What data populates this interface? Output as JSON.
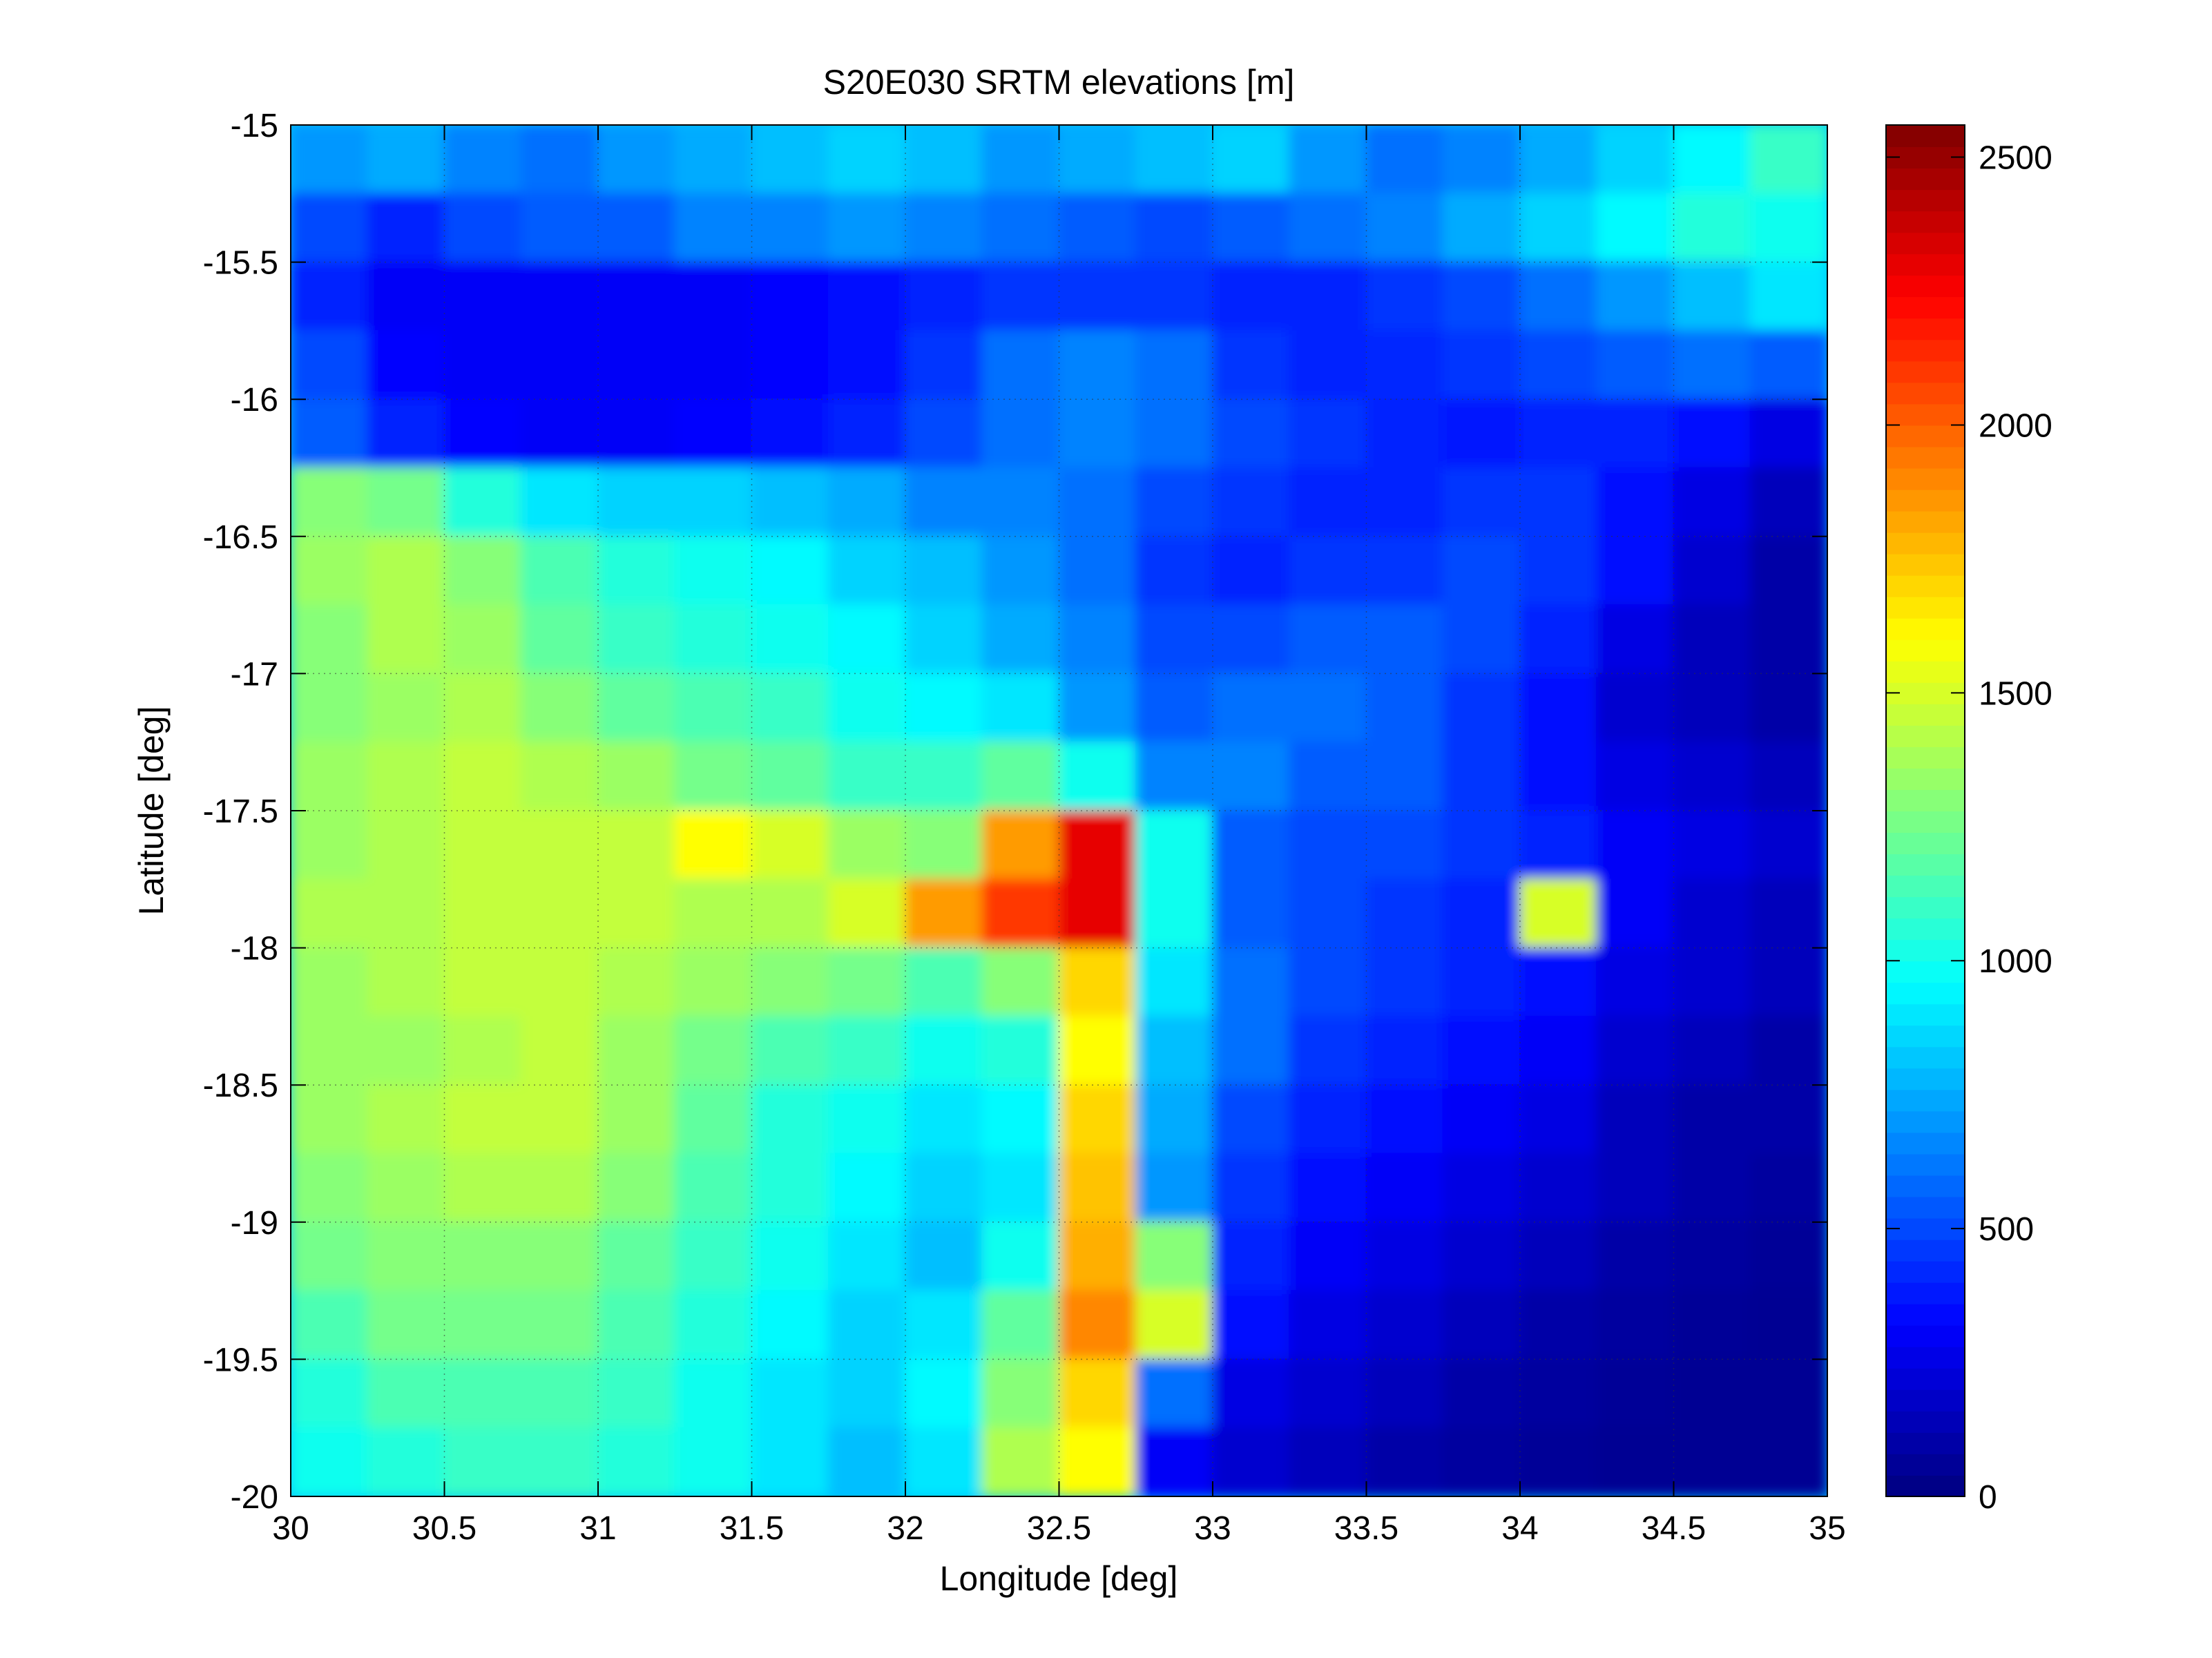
{
  "chart_data": {
    "type": "heatmap",
    "title": "S20E030 SRTM elevations [m]",
    "xlabel": "Longitude [deg]",
    "ylabel": "Latitude [deg]",
    "xlim": [
      30,
      35
    ],
    "ylim": [
      -20,
      -15
    ],
    "x_ticks": [
      30,
      30.5,
      31,
      31.5,
      32,
      32.5,
      33,
      33.5,
      34,
      34.5,
      35
    ],
    "x_tick_labels": [
      "30",
      "30.5",
      "31",
      "31.5",
      "32",
      "32.5",
      "33",
      "33.5",
      "34",
      "34.5",
      "35"
    ],
    "y_ticks": [
      -15,
      -15.5,
      -16,
      -16.5,
      -17,
      -17.5,
      -18,
      -18.5,
      -19,
      -19.5,
      -20
    ],
    "y_tick_labels": [
      "-15",
      "-15.5",
      "-16",
      "-16.5",
      "-17",
      "-17.5",
      "-18",
      "-18.5",
      "-19",
      "-19.5",
      "-20"
    ],
    "grid": true,
    "colormap": "jet",
    "colorbar": {
      "position": "right",
      "clim": [
        0,
        2560
      ],
      "ticks": [
        0,
        500,
        1000,
        1500,
        2000,
        2500
      ],
      "tick_labels": [
        "0",
        "500",
        "1000",
        "1500",
        "2000",
        "2500"
      ]
    },
    "grid_lat_step": 0.25,
    "grid_lon_step": 0.25,
    "elevation_grid": [
      [
        700,
        750,
        650,
        600,
        700,
        750,
        800,
        850,
        800,
        700,
        750,
        800,
        850,
        700,
        600,
        650,
        750,
        850,
        950,
        1100
      ],
      [
        500,
        400,
        500,
        550,
        550,
        650,
        650,
        700,
        650,
        600,
        550,
        500,
        550,
        600,
        650,
        750,
        850,
        950,
        1050,
        1000
      ],
      [
        400,
        300,
        300,
        300,
        300,
        300,
        320,
        350,
        400,
        450,
        450,
        450,
        400,
        400,
        450,
        500,
        600,
        700,
        800,
        900
      ],
      [
        500,
        330,
        300,
        300,
        300,
        300,
        320,
        350,
        450,
        600,
        650,
        600,
        450,
        400,
        420,
        450,
        500,
        550,
        600,
        550
      ],
      [
        550,
        400,
        330,
        300,
        300,
        320,
        350,
        400,
        500,
        600,
        650,
        600,
        500,
        450,
        400,
        380,
        400,
        400,
        350,
        250
      ],
      [
        1300,
        1250,
        1050,
        900,
        850,
        850,
        800,
        750,
        650,
        650,
        600,
        500,
        450,
        400,
        400,
        450,
        450,
        350,
        250,
        150
      ],
      [
        1350,
        1400,
        1300,
        1150,
        1050,
        1000,
        950,
        850,
        800,
        700,
        600,
        450,
        400,
        450,
        450,
        500,
        450,
        350,
        200,
        100
      ],
      [
        1300,
        1400,
        1350,
        1200,
        1100,
        1050,
        1000,
        950,
        850,
        750,
        650,
        500,
        500,
        550,
        550,
        500,
        400,
        250,
        150,
        100
      ],
      [
        1300,
        1350,
        1400,
        1300,
        1200,
        1150,
        1100,
        1000,
        950,
        900,
        700,
        550,
        600,
        600,
        550,
        450,
        350,
        200,
        150,
        100
      ],
      [
        1350,
        1400,
        1450,
        1400,
        1350,
        1250,
        1200,
        1100,
        1100,
        1200,
        1000,
        650,
        650,
        550,
        550,
        450,
        350,
        250,
        200,
        150
      ],
      [
        1350,
        1400,
        1450,
        1450,
        1450,
        1600,
        1500,
        1350,
        1300,
        1850,
        2300,
        1000,
        550,
        500,
        500,
        450,
        400,
        300,
        250,
        200
      ],
      [
        1400,
        1400,
        1450,
        1450,
        1450,
        1400,
        1400,
        1500,
        1850,
        2100,
        2300,
        1000,
        550,
        500,
        450,
        400,
        1500,
        300,
        200,
        150
      ],
      [
        1350,
        1400,
        1450,
        1450,
        1400,
        1350,
        1300,
        1250,
        1150,
        1300,
        1700,
        900,
        600,
        500,
        450,
        400,
        350,
        250,
        200,
        150
      ],
      [
        1350,
        1350,
        1400,
        1450,
        1350,
        1250,
        1150,
        1100,
        1000,
        1050,
        1600,
        800,
        600,
        450,
        400,
        350,
        300,
        200,
        150,
        100
      ],
      [
        1350,
        1400,
        1450,
        1450,
        1350,
        1200,
        1050,
        1000,
        900,
        950,
        1700,
        750,
        500,
        400,
        350,
        300,
        250,
        150,
        100,
        100
      ],
      [
        1300,
        1350,
        1400,
        1400,
        1300,
        1150,
        1050,
        950,
        850,
        900,
        1750,
        700,
        450,
        350,
        300,
        250,
        200,
        150,
        100,
        80
      ],
      [
        1250,
        1300,
        1300,
        1300,
        1200,
        1100,
        1000,
        900,
        800,
        1000,
        1800,
        1300,
        400,
        300,
        250,
        200,
        150,
        100,
        80,
        60
      ],
      [
        1150,
        1250,
        1250,
        1250,
        1150,
        1050,
        950,
        850,
        900,
        1200,
        1900,
        1500,
        350,
        250,
        200,
        150,
        100,
        80,
        60,
        50
      ],
      [
        1050,
        1150,
        1150,
        1150,
        1100,
        1000,
        900,
        850,
        950,
        1300,
        1700,
        600,
        250,
        200,
        150,
        100,
        80,
        60,
        50,
        50
      ],
      [
        1000,
        1050,
        1100,
        1100,
        1050,
        1000,
        900,
        800,
        900,
        1400,
        1600,
        300,
        200,
        150,
        100,
        80,
        60,
        50,
        50,
        50
      ]
    ]
  }
}
